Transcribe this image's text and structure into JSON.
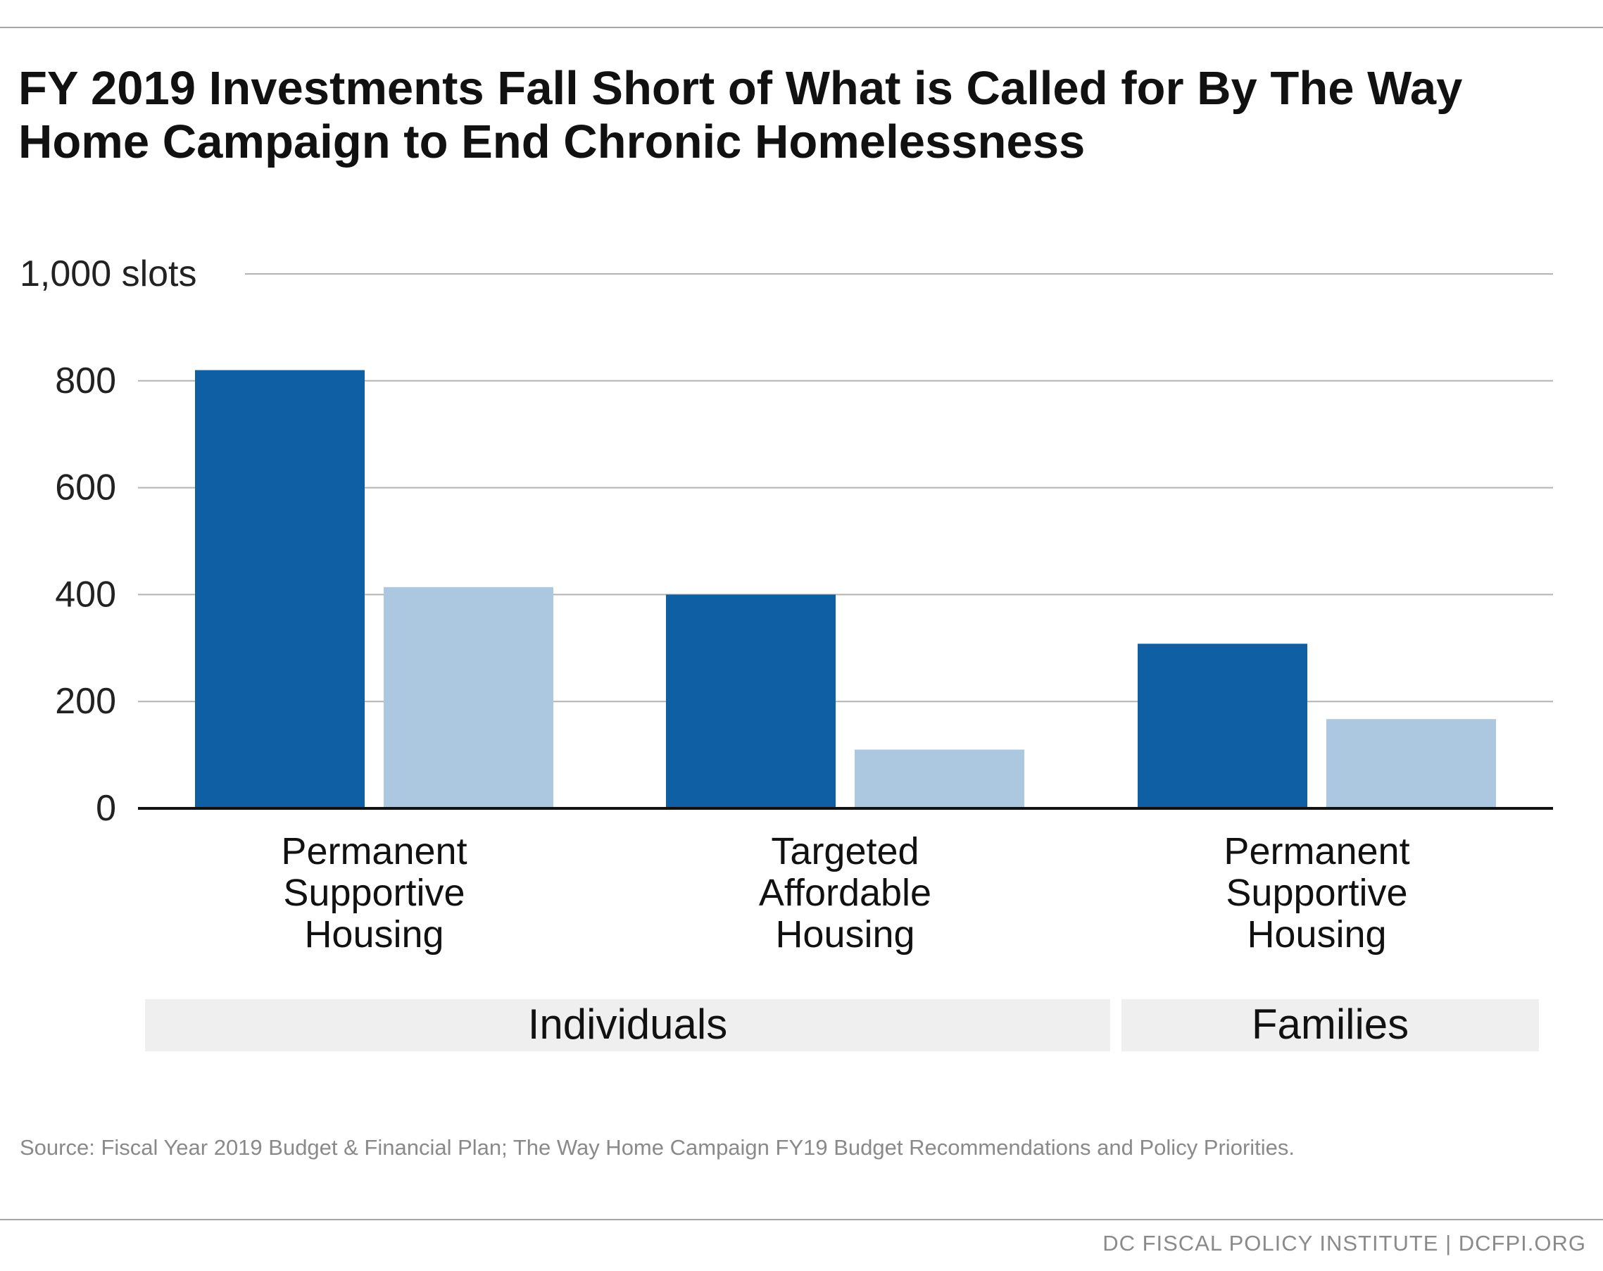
{
  "page": {
    "title": "FY 2019 Investments Fall Short of What is Called for By The Way Home Campaign to End Chronic Homelessness",
    "source": "Source: Fiscal Year 2019 Budget & Financial Plan; The Way Home Campaign FY19 Budget Recommendations and Policy Priorities.",
    "footer": "DC FISCAL POLICY INSTITUTE | DCFPI.ORG"
  },
  "chart_data": {
    "type": "bar",
    "categories": [
      [
        "Permanent",
        "Supportive",
        "Housing"
      ],
      [
        "Targeted",
        "Affordable",
        "Housing"
      ],
      [
        "Permanent",
        "Supportive",
        "Housing"
      ]
    ],
    "groups": [
      {
        "label": "Individuals",
        "categories": [
          0,
          1
        ]
      },
      {
        "label": "Families",
        "categories": [
          2
        ]
      }
    ],
    "series": [
      {
        "values": [
          820,
          400,
          308
        ],
        "color": "#0e5fa3"
      },
      {
        "values": [
          414,
          110,
          167
        ],
        "color": "#abc8e0"
      }
    ],
    "yticks": [
      0,
      200,
      400,
      600,
      800,
      1000
    ],
    "ytick_labels": [
      "0",
      "200",
      "400",
      "600",
      "800",
      "1,000 slots"
    ],
    "ylim": [
      0,
      1000
    ],
    "grid": true,
    "legend": "none"
  }
}
